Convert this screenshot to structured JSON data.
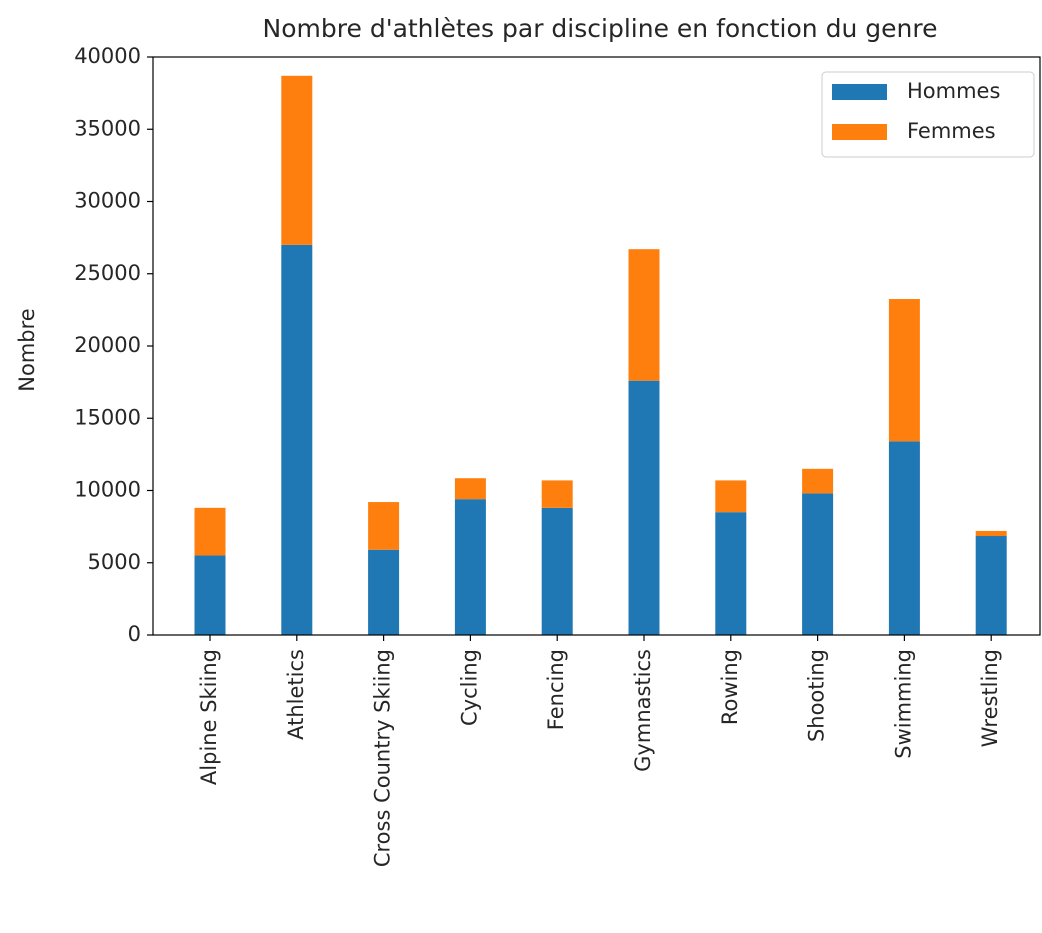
{
  "chart_data": {
    "type": "stacked_bar",
    "title": "Nombre d'athlètes par discipline en fonction du genre",
    "ylabel": "Nombre",
    "categories": [
      "Alpine Skiing",
      "Athletics",
      "Cross Country Skiing",
      "Cycling",
      "Fencing",
      "Gymnastics",
      "Rowing",
      "Shooting",
      "Swimming",
      "Wrestling"
    ],
    "series": [
      {
        "name": "Hommes",
        "color": "#1f77b4",
        "values": [
          5500,
          27000,
          5900,
          9400,
          8800,
          17600,
          8500,
          9800,
          13400,
          6850
        ]
      },
      {
        "name": "Femmes",
        "color": "#ff7f0e",
        "values": [
          3300,
          11700,
          3300,
          1450,
          1900,
          9100,
          2200,
          1700,
          9850,
          350
        ]
      }
    ],
    "ylim": [
      0,
      40000
    ],
    "yticks": [
      0,
      5000,
      10000,
      15000,
      20000,
      25000,
      30000,
      35000,
      40000
    ],
    "legend": "upper right"
  }
}
